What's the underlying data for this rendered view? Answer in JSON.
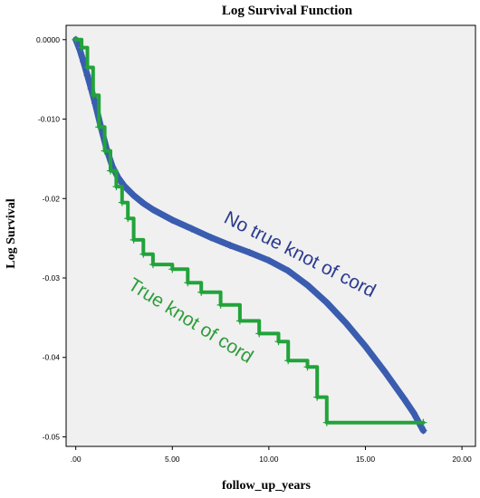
{
  "chart_data": {
    "type": "line",
    "title": "Log Survival Function",
    "xlabel": "follow_up_years",
    "ylabel": "Log Survival",
    "xlim": [
      -0.5,
      20.7
    ],
    "ylim": [
      -0.0512,
      0.0018
    ],
    "x_ticks": [
      0,
      5,
      10,
      15,
      20
    ],
    "x_tick_labels": [
      ".00",
      "5.00",
      "10.00",
      "15.00",
      "20.00"
    ],
    "y_ticks": [
      0.0,
      -0.01,
      -0.02,
      -0.03,
      -0.04,
      -0.05
    ],
    "y_tick_labels": [
      "0.0000",
      "-0.010",
      "-0.02",
      "-0.03",
      "-0.04",
      "-0.05"
    ],
    "grid": false,
    "legend": "none",
    "background_color": "#f0f0f0",
    "annotations": [
      {
        "text": "No true knot of cord",
        "color": "#2b3b8f",
        "series": "No true knot of cord"
      },
      {
        "text": "True knot of cord",
        "color": "#2e9c3c",
        "series": "True knot of cord"
      }
    ],
    "series": [
      {
        "name": "No true knot of cord",
        "color": "#3a5db0",
        "step": false,
        "points": [
          [
            0,
            0
          ],
          [
            0.2,
            -0.0012
          ],
          [
            0.4,
            -0.0028
          ],
          [
            0.6,
            -0.0045
          ],
          [
            0.8,
            -0.0062
          ],
          [
            1.0,
            -0.008
          ],
          [
            1.3,
            -0.011
          ],
          [
            1.6,
            -0.0138
          ],
          [
            1.9,
            -0.016
          ],
          [
            2.2,
            -0.0174
          ],
          [
            2.5,
            -0.0184
          ],
          [
            3.0,
            -0.0196
          ],
          [
            3.5,
            -0.0206
          ],
          [
            4.0,
            -0.0214
          ],
          [
            5.0,
            -0.0227
          ],
          [
            6.0,
            -0.0238
          ],
          [
            7.0,
            -0.0249
          ],
          [
            8.0,
            -0.0259
          ],
          [
            9.0,
            -0.0268
          ],
          [
            10.0,
            -0.0278
          ],
          [
            11.0,
            -0.0291
          ],
          [
            12.0,
            -0.0309
          ],
          [
            13.0,
            -0.0331
          ],
          [
            14.0,
            -0.0357
          ],
          [
            15.0,
            -0.0386
          ],
          [
            16.0,
            -0.0418
          ],
          [
            17.0,
            -0.0452
          ],
          [
            17.5,
            -0.047
          ],
          [
            18.0,
            -0.0492
          ]
        ]
      },
      {
        "name": "True knot of cord",
        "color": "#22a33a",
        "step": true,
        "points": [
          [
            0,
            0
          ],
          [
            0.3,
            -0.001
          ],
          [
            0.6,
            -0.0035
          ],
          [
            0.9,
            -0.007
          ],
          [
            1.2,
            -0.011
          ],
          [
            1.5,
            -0.014
          ],
          [
            1.8,
            -0.0165
          ],
          [
            2.1,
            -0.0185
          ],
          [
            2.4,
            -0.0205
          ],
          [
            2.7,
            -0.0225
          ],
          [
            3.0,
            -0.0252
          ],
          [
            3.5,
            -0.027
          ],
          [
            4.0,
            -0.0283
          ],
          [
            5.0,
            -0.0289
          ],
          [
            5.8,
            -0.0306
          ],
          [
            6.5,
            -0.0318
          ],
          [
            7.5,
            -0.0334
          ],
          [
            8.5,
            -0.0354
          ],
          [
            9.5,
            -0.037
          ],
          [
            10.5,
            -0.038
          ],
          [
            11.0,
            -0.0404
          ],
          [
            12.0,
            -0.0412
          ],
          [
            12.5,
            -0.045
          ],
          [
            13.0,
            -0.0482
          ],
          [
            18.0,
            -0.0482
          ]
        ]
      }
    ]
  }
}
